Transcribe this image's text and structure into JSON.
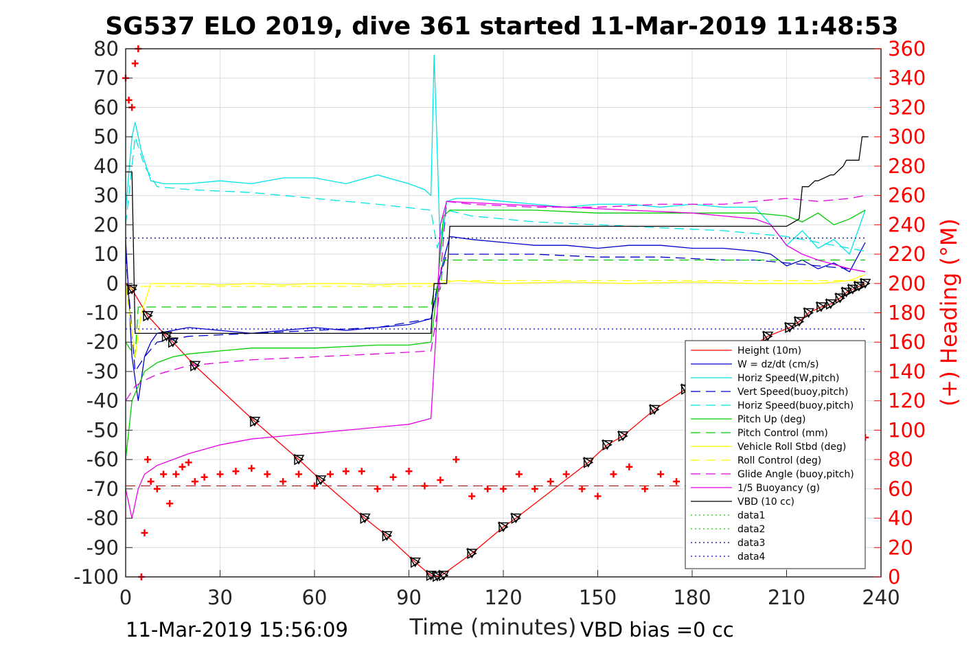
{
  "chart_data": {
    "type": "line",
    "title": "SG537 ELO 2019, dive 361 started 11-Mar-2019 11:48:53",
    "xlabel": "Time (minutes)",
    "ylabel_right": "(+) Heading (°M)",
    "xlim": [
      0,
      240
    ],
    "ylim_left": [
      -100,
      80
    ],
    "ylim_right": [
      0,
      360
    ],
    "x_ticks": [
      "0",
      "30",
      "60",
      "90",
      "120",
      "150",
      "180",
      "210",
      "240"
    ],
    "y_ticks_left": [
      "80",
      "70",
      "60",
      "50",
      "40",
      "30",
      "20",
      "10",
      "0",
      "-10",
      "-20",
      "-30",
      "-40",
      "-50",
      "-60",
      "-70",
      "-80",
      "-90",
      "-100"
    ],
    "y_ticks_right": [
      "360",
      "340",
      "320",
      "300",
      "280",
      "260",
      "240",
      "220",
      "200",
      "180",
      "160",
      "140",
      "120",
      "100",
      "80",
      "60",
      "40",
      "20",
      "0"
    ],
    "grid": true,
    "legend_position": "lower-right",
    "footer_left": "11-Mar-2019 15:56:09",
    "footer_right": "VBD bias =0 cc",
    "series": [
      {
        "name": "Height (10m)",
        "color": "#ff0000",
        "style": "solid",
        "x": [
          0,
          2,
          7,
          13,
          15,
          22,
          41,
          55,
          62,
          76,
          83,
          92,
          97,
          100,
          110,
          120,
          124,
          147,
          153,
          158,
          168,
          178,
          204,
          211,
          214,
          217,
          221,
          224,
          227,
          229,
          231,
          233,
          235
        ],
        "y": [
          0,
          -2,
          -11,
          -18,
          -20,
          -28,
          -47,
          -60,
          -67,
          -80,
          -86,
          -95,
          -99.5,
          -99.8,
          -92,
          -83,
          -80,
          -61,
          -55,
          -52,
          -43,
          -36,
          -18,
          -15,
          -13,
          -10,
          -8,
          -7,
          -5,
          -3,
          -2,
          -1,
          0
        ]
      },
      {
        "name": "W = dz/dt (cm/s)",
        "color": "#0000cc",
        "style": "solid",
        "x": [
          0,
          2,
          4,
          6,
          8,
          10,
          15,
          20,
          30,
          40,
          50,
          60,
          70,
          80,
          90,
          97,
          99,
          101,
          103,
          110,
          120,
          130,
          140,
          150,
          160,
          170,
          180,
          190,
          200,
          205,
          210,
          215,
          220,
          225,
          230,
          235
        ],
        "y": [
          15,
          -25,
          -40,
          -25,
          -20,
          -17,
          -16,
          -15,
          -16,
          -17,
          -16,
          -15,
          -16,
          -15,
          -14,
          -12,
          -2,
          8,
          16,
          15,
          14,
          13,
          13,
          12,
          13,
          13,
          12,
          12,
          11,
          10,
          6,
          8,
          5,
          7,
          4,
          14
        ]
      },
      {
        "name": "Horiz Speed(W,pitch)",
        "color": "#00e5e5",
        "style": "solid",
        "x": [
          0,
          2,
          3,
          5,
          8,
          12,
          20,
          30,
          40,
          50,
          60,
          70,
          80,
          90,
          95,
          97,
          98,
          99,
          100,
          102,
          105,
          110,
          120,
          130,
          140,
          150,
          160,
          170,
          180,
          190,
          200,
          205,
          210,
          215,
          220,
          225,
          230,
          235
        ],
        "y": [
          25,
          50,
          55,
          45,
          35,
          34,
          34,
          35,
          34,
          36,
          36,
          34,
          37,
          34,
          32,
          30,
          78,
          45,
          10,
          28,
          29,
          29,
          28,
          27,
          26,
          27,
          27,
          26,
          27,
          26,
          26,
          20,
          13,
          18,
          12,
          15,
          10,
          25
        ]
      },
      {
        "name": "Vert Speed(buoy,pitch)",
        "color": "#0000cc",
        "style": "dashed",
        "x": [
          0,
          3,
          6,
          10,
          20,
          40,
          60,
          80,
          97,
          99,
          102,
          110,
          130,
          150,
          170,
          190,
          200,
          210,
          220,
          230,
          235
        ],
        "y": [
          10,
          -30,
          -25,
          -20,
          -18,
          -17,
          -16,
          -15,
          -12,
          -1,
          10,
          10,
          10,
          9,
          9,
          8,
          8,
          7,
          6,
          5,
          4
        ]
      },
      {
        "name": "Horiz Speed(buoy,pitch)",
        "color": "#00e5e5",
        "style": "dashed",
        "x": [
          0,
          3,
          6,
          10,
          20,
          40,
          60,
          80,
          97,
          99,
          102,
          110,
          130,
          150,
          170,
          190,
          200,
          210,
          220,
          230,
          235
        ],
        "y": [
          20,
          50,
          40,
          33,
          32,
          31,
          29,
          27,
          25,
          12,
          25,
          23,
          21,
          20,
          19,
          18,
          17,
          16,
          14,
          12,
          11
        ]
      },
      {
        "name": "Pitch Up (deg)",
        "color": "#00cc00",
        "style": "solid",
        "x": [
          0,
          2,
          4,
          6,
          10,
          15,
          20,
          30,
          40,
          60,
          80,
          90,
          97,
          99,
          101,
          103,
          110,
          130,
          150,
          170,
          190,
          200,
          210,
          215,
          220,
          225,
          230,
          235
        ],
        "y": [
          -60,
          -40,
          -35,
          -30,
          -27,
          -25,
          -24,
          -23,
          -22,
          -22,
          -21,
          -21,
          -20,
          -2,
          23,
          25,
          25,
          25,
          24,
          24,
          24,
          24,
          23,
          21,
          24,
          20,
          22,
          25
        ]
      },
      {
        "name": "Pitch Control (mm)",
        "color": "#00cc00",
        "style": "dashed",
        "x": [
          0,
          3,
          4,
          10,
          50,
          97,
          98,
          100,
          101,
          102,
          150,
          200,
          210,
          235
        ],
        "y": [
          -20,
          -25,
          -8,
          -8,
          -8,
          -8,
          -2,
          -2,
          8,
          8,
          8,
          8,
          8,
          8
        ]
      },
      {
        "name": "Vehicle Roll Stbd (deg)",
        "color": "#ffff00",
        "style": "solid",
        "x": [
          0,
          3,
          5,
          8,
          12,
          20,
          30,
          40,
          50,
          60,
          70,
          80,
          90,
          97,
          100,
          105,
          120,
          140,
          160,
          180,
          200,
          210,
          220,
          230,
          235
        ],
        "y": [
          0,
          -25,
          -10,
          0,
          0,
          0,
          -0.5,
          0,
          -0.5,
          0,
          0,
          -0.5,
          0,
          0,
          0,
          1,
          0,
          0.5,
          0,
          0.5,
          0,
          0,
          0,
          1,
          3
        ]
      },
      {
        "name": "Roll Control (deg)",
        "color": "#ffff00",
        "style": "dashed",
        "x": [
          0,
          5,
          50,
          97,
          100,
          150,
          200,
          235
        ],
        "y": [
          -2,
          -1,
          -1,
          -1,
          1,
          1,
          1,
          1
        ]
      },
      {
        "name": "Glide Angle (buoy,pitch)",
        "color": "#e600e6",
        "style": "dashed",
        "x": [
          0,
          3,
          6,
          10,
          20,
          40,
          60,
          80,
          97,
          99,
          102,
          110,
          130,
          150,
          170,
          190,
          200,
          210,
          220,
          230,
          235
        ],
        "y": [
          -40,
          -35,
          -33,
          -31,
          -28,
          -26,
          -25,
          -24,
          -23,
          -10,
          28,
          27,
          26,
          26,
          27,
          27,
          28,
          29,
          28,
          29,
          30
        ]
      },
      {
        "name": "1/5 Buoyancy (g)",
        "color": "#e600e6",
        "style": "solid",
        "x": [
          0,
          2,
          4,
          6,
          10,
          20,
          30,
          40,
          50,
          60,
          70,
          80,
          90,
          97,
          99,
          100,
          102,
          120,
          140,
          160,
          180,
          190,
          200,
          205,
          210,
          215,
          220,
          230,
          235
        ],
        "y": [
          -70,
          -80,
          -70,
          -65,
          -62,
          -58,
          -55,
          -53,
          -52,
          -51,
          -50,
          -49,
          -48,
          -46,
          -10,
          20,
          28,
          27,
          26,
          25,
          24,
          23,
          22,
          20,
          13,
          10,
          8,
          5,
          4
        ]
      },
      {
        "name": "VBD (10 cc)",
        "color": "#000000",
        "style": "solid",
        "x": [
          0,
          2,
          3,
          4,
          97,
          98,
          102,
          103,
          140,
          200,
          210,
          214,
          215,
          217,
          219,
          220,
          224,
          225,
          228,
          229,
          233,
          234,
          236
        ],
        "y": [
          38,
          38,
          -17,
          -17,
          -17,
          0,
          0,
          19.5,
          19.5,
          19.5,
          19.5,
          22,
          33,
          33,
          35,
          35,
          37,
          37,
          40,
          42,
          42,
          50,
          50
        ]
      },
      {
        "name": "data1",
        "color": "#00cc00",
        "style": "dotted",
        "x": [],
        "y": []
      },
      {
        "name": "data2",
        "color": "#00cc00",
        "style": "dotted",
        "x": [],
        "y": []
      },
      {
        "name": "data3",
        "color": "#000080",
        "style": "dotted",
        "x": [
          0,
          235
        ],
        "y": [
          15.5,
          15.5
        ]
      },
      {
        "name": "data4",
        "color": "#0000cc",
        "style": "dotted",
        "x": [
          0,
          235
        ],
        "y": [
          -15.5,
          -15.5
        ]
      }
    ],
    "heading": {
      "color": "#ff0000",
      "x": [
        0,
        1,
        2,
        3,
        4,
        5,
        6,
        7,
        8,
        10,
        12,
        14,
        16,
        18,
        20,
        22,
        25,
        30,
        35,
        40,
        45,
        50,
        55,
        60,
        65,
        70,
        75,
        80,
        85,
        90,
        95,
        100,
        105,
        110,
        115,
        120,
        125,
        130,
        135,
        140,
        145,
        150,
        155,
        160,
        165,
        170,
        175,
        180,
        185,
        190,
        195,
        200,
        205,
        210,
        215,
        220,
        225,
        230,
        235
      ],
      "y": [
        340,
        325,
        320,
        350,
        360,
        0,
        30,
        80,
        65,
        60,
        70,
        50,
        70,
        75,
        78,
        65,
        68,
        70,
        72,
        74,
        70,
        65,
        70,
        62,
        70,
        72,
        72,
        60,
        68,
        72,
        62,
        66,
        80,
        55,
        60,
        60,
        70,
        60,
        65,
        70,
        60,
        55,
        70,
        75,
        60,
        70,
        65,
        60,
        68,
        70,
        72,
        55,
        60,
        70,
        68,
        72,
        62,
        70,
        95
      ]
    },
    "heading_dashed_level": 62,
    "markers": {
      "color": "#000000",
      "x": [
        2,
        7,
        13,
        15,
        22,
        41,
        55,
        62,
        76,
        83,
        92,
        97,
        99,
        101,
        110,
        120,
        124,
        147,
        153,
        158,
        168,
        178,
        204,
        211,
        214,
        217,
        221,
        224,
        227,
        229,
        231,
        233,
        235
      ],
      "y": [
        -2,
        -11,
        -18,
        -20,
        -28,
        -47,
        -60,
        -67,
        -80,
        -86,
        -95,
        -99.5,
        -99.8,
        -99.5,
        -92,
        -83,
        -80,
        -61,
        -55,
        -52,
        -43,
        -36,
        -18,
        -15,
        -13,
        -10,
        -8,
        -7,
        -5,
        -3,
        -2,
        -1,
        0
      ]
    }
  }
}
